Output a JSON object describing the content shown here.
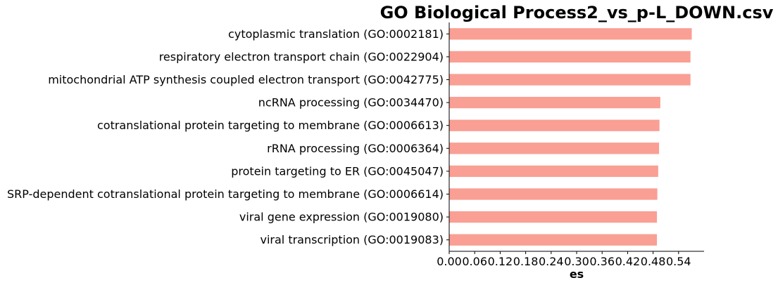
{
  "chart_data": {
    "type": "bar",
    "orientation": "horizontal",
    "title": "GO Biological Process2_vs_p-L_DOWN.csv",
    "xlabel": "es",
    "ylabel": "",
    "xlim": [
      0,
      0.6
    ],
    "xticks": [
      "0.00",
      "0.06",
      "0.12",
      "0.18",
      "0.24",
      "0.30",
      "0.36",
      "0.42",
      "0.48",
      "0.54"
    ],
    "xtick_values": [
      0,
      0.06,
      0.12,
      0.18,
      0.24,
      0.3,
      0.36,
      0.42,
      0.48,
      0.54
    ],
    "grid": false,
    "bar_color": "#fa9f94",
    "categories": [
      "cytoplasmic translation (GO:0002181)",
      "respiratory electron transport chain (GO:0022904)",
      "mitochondrial ATP synthesis coupled electron transport (GO:0042775)",
      "ncRNA processing (GO:0034470)",
      "cotranslational protein targeting to membrane (GO:0006613)",
      "rRNA processing (GO:0006364)",
      "protein targeting to ER (GO:0045047)",
      "SRP-dependent cotranslational protein targeting to membrane (GO:0006614)",
      "viral gene expression (GO:0019080)",
      "viral transcription (GO:0019083)"
    ],
    "values": [
      0.571,
      0.568,
      0.568,
      0.497,
      0.495,
      0.494,
      0.492,
      0.49,
      0.489,
      0.489
    ]
  }
}
